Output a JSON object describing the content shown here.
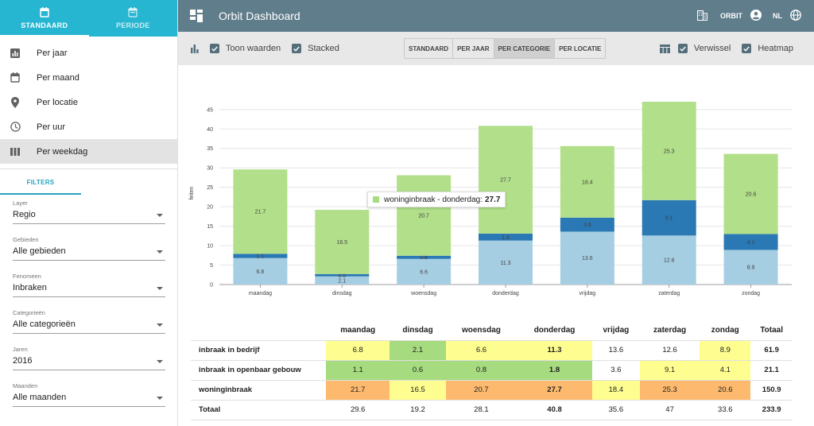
{
  "sidebar": {
    "tabs": [
      {
        "label": "STANDAARD",
        "icon": "calendar-icon",
        "active": true
      },
      {
        "label": "PERIODE",
        "icon": "calendar-range-icon",
        "active": false
      }
    ],
    "nav": [
      {
        "label": "Per jaar",
        "icon": "bar-chart-icon"
      },
      {
        "label": "Per maand",
        "icon": "calendar-icon"
      },
      {
        "label": "Per locatie",
        "icon": "location-pin-icon"
      },
      {
        "label": "Per uur",
        "icon": "clock-icon"
      },
      {
        "label": "Per weekdag",
        "icon": "columns-icon",
        "active": true
      }
    ],
    "filters_tab": "FILTERS",
    "filters": [
      {
        "label": "Layer",
        "value": "Regio"
      },
      {
        "label": "Gebieden",
        "value": "Alle gebieden"
      },
      {
        "label": "Fenomeen",
        "value": "Inbraken"
      },
      {
        "label": "Categorieën",
        "value": "Alle categorieën"
      },
      {
        "label": "Jaren",
        "value": "2016"
      },
      {
        "label": "Maanden",
        "value": "Alle maanden"
      }
    ]
  },
  "header": {
    "title": "Orbit Dashboard",
    "org": "ORBIT",
    "lang": "NL"
  },
  "toolbar": {
    "show_values": "Toon waarden",
    "stacked": "Stacked",
    "segments": [
      {
        "label": "STANDAARD",
        "active": false
      },
      {
        "label": "PER JAAR",
        "active": false
      },
      {
        "label": "PER CATEGORIE",
        "active": true
      },
      {
        "label": "PER LOCATIE",
        "active": false
      }
    ],
    "swap": "Verwissel",
    "heatmap": "Heatmap"
  },
  "chart_data": {
    "type": "bar",
    "stacked": true,
    "ylabel": "feiten",
    "ylim": [
      0,
      47
    ],
    "yticks": [
      0,
      5,
      10,
      15,
      20,
      25,
      30,
      35,
      40,
      45
    ],
    "categories": [
      "maandag",
      "dinsdag",
      "woensdag",
      "donderdag",
      "vrijdag",
      "zaterdag",
      "zondag"
    ],
    "series": [
      {
        "name": "inbraak in bedrijf",
        "color": "#a6cee3",
        "values": [
          6.8,
          2.1,
          6.6,
          11.3,
          13.6,
          12.6,
          8.9
        ]
      },
      {
        "name": "inbraak in openbaar gebouw",
        "color": "#2a78b4",
        "values": [
          1.1,
          0.6,
          0.8,
          1.8,
          3.6,
          9.1,
          4.1
        ]
      },
      {
        "name": "woninginbraak",
        "color": "#b2df8a",
        "values": [
          21.7,
          16.5,
          20.7,
          27.7,
          18.4,
          25.3,
          20.6
        ]
      }
    ],
    "tooltip": {
      "label": "woninginbraak - donderdag:",
      "value": "27.7"
    }
  },
  "table": {
    "headers": [
      "maandag",
      "dinsdag",
      "woensdag",
      "donderdag",
      "vrijdag",
      "zaterdag",
      "zondag",
      "Totaal"
    ],
    "rows": [
      {
        "name": "inbraak in bedrijf",
        "values": [
          "6.8",
          "2.1",
          "6.6",
          "11.3",
          "13.6",
          "12.6",
          "8.9"
        ],
        "total": "61.9"
      },
      {
        "name": "inbraak in openbaar gebouw",
        "values": [
          "1.1",
          "0.6",
          "0.8",
          "1.8",
          "3.6",
          "9.1",
          "4.1"
        ],
        "total": "21.1"
      },
      {
        "name": "woninginbraak",
        "values": [
          "21.7",
          "16.5",
          "20.7",
          "27.7",
          "18.4",
          "25.3",
          "20.6"
        ],
        "total": "150.9"
      }
    ],
    "total_label": "Totaal",
    "totals": [
      "29.6",
      "19.2",
      "28.1",
      "40.8",
      "35.6",
      "47",
      "33.6"
    ],
    "grand_total": "233.9",
    "heat_colors": [
      [
        "#fefe90",
        "#a6db7f",
        "#fefe90",
        "#fefe90",
        "",
        "",
        "#fefe90"
      ],
      [
        "#a6db7f",
        "#a6db7f",
        "#a6db7f",
        "#a6db7f",
        "",
        "#fefe90",
        "#fefe90"
      ],
      [
        "#fdba6f",
        "#fefe90",
        "#fdba6f",
        "#fdba6f",
        "#fefe90",
        "#fdba6f",
        "#fdba6f"
      ]
    ],
    "bold_cells": [
      [
        3
      ],
      [
        3
      ],
      [
        3
      ]
    ]
  }
}
